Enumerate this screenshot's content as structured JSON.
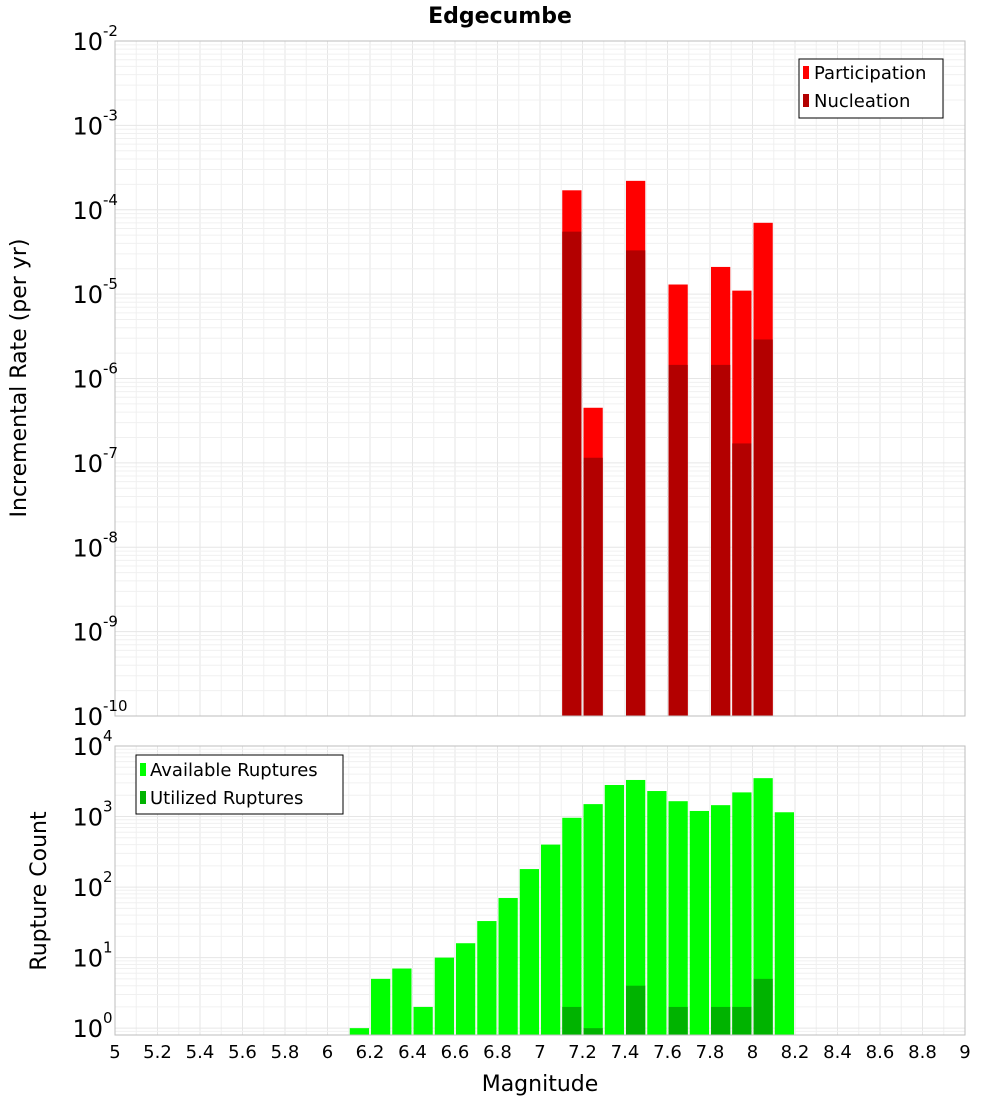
{
  "chart_data": [
    {
      "type": "bar",
      "title": "Edgecumbe",
      "ylabel": "Incremental Rate (per yr)",
      "xlabel": "",
      "xlim": [
        5,
        9
      ],
      "ylim": [
        1e-10,
        0.01
      ],
      "y_scale": "log",
      "bar_width": 0.1,
      "grid": true,
      "legend_position": "top-right",
      "series": [
        {
          "name": "Participation",
          "color": "#ff0000",
          "points": [
            {
              "x": 7.15,
              "y": 0.00017
            },
            {
              "x": 7.25,
              "y": 4.5e-07
            },
            {
              "x": 7.45,
              "y": 0.00022
            },
            {
              "x": 7.65,
              "y": 1.3e-05
            },
            {
              "x": 7.85,
              "y": 2.1e-05
            },
            {
              "x": 7.95,
              "y": 1.1e-05
            },
            {
              "x": 8.05,
              "y": 7e-05
            }
          ]
        },
        {
          "name": "Nucleation",
          "color": "#b30000",
          "points": [
            {
              "x": 7.15,
              "y": 5.5e-05
            },
            {
              "x": 7.25,
              "y": 1.15e-07
            },
            {
              "x": 7.45,
              "y": 3.3e-05
            },
            {
              "x": 7.65,
              "y": 1.45e-06
            },
            {
              "x": 7.85,
              "y": 1.45e-06
            },
            {
              "x": 7.95,
              "y": 1.7e-07
            },
            {
              "x": 8.05,
              "y": 2.9e-06
            }
          ]
        }
      ]
    },
    {
      "type": "bar",
      "title": "",
      "ylabel": "Rupture Count",
      "xlabel": "Magnitude",
      "xlim": [
        5,
        9
      ],
      "ylim": [
        0.8,
        10000.0
      ],
      "y_scale": "log",
      "bar_width": 0.1,
      "grid": true,
      "legend_position": "top-left",
      "x_ticks": [
        "5",
        "5.2",
        "5.4",
        "5.6",
        "5.8",
        "6",
        "6.2",
        "6.4",
        "6.6",
        "6.8",
        "7",
        "7.2",
        "7.4",
        "7.6",
        "7.8",
        "8",
        "8.2",
        "8.4",
        "8.6",
        "8.8",
        "9"
      ],
      "series": [
        {
          "name": "Available Ruptures",
          "color": "#00ff00",
          "points": [
            {
              "x": 6.15,
              "y": 1
            },
            {
              "x": 6.25,
              "y": 5
            },
            {
              "x": 6.35,
              "y": 7
            },
            {
              "x": 6.45,
              "y": 2
            },
            {
              "x": 6.55,
              "y": 10
            },
            {
              "x": 6.65,
              "y": 16
            },
            {
              "x": 6.75,
              "y": 33
            },
            {
              "x": 6.85,
              "y": 70
            },
            {
              "x": 6.95,
              "y": 180
            },
            {
              "x": 7.05,
              "y": 400
            },
            {
              "x": 7.15,
              "y": 960
            },
            {
              "x": 7.25,
              "y": 1500
            },
            {
              "x": 7.35,
              "y": 2800
            },
            {
              "x": 7.45,
              "y": 3300
            },
            {
              "x": 7.55,
              "y": 2300
            },
            {
              "x": 7.65,
              "y": 1650
            },
            {
              "x": 7.75,
              "y": 1200
            },
            {
              "x": 7.85,
              "y": 1450
            },
            {
              "x": 7.95,
              "y": 2200
            },
            {
              "x": 8.05,
              "y": 3500
            },
            {
              "x": 8.15,
              "y": 1150
            }
          ]
        },
        {
          "name": "Utilized Ruptures",
          "color": "#00b300",
          "points": [
            {
              "x": 7.15,
              "y": 2
            },
            {
              "x": 7.25,
              "y": 1
            },
            {
              "x": 7.45,
              "y": 4
            },
            {
              "x": 7.65,
              "y": 2
            },
            {
              "x": 7.85,
              "y": 2
            },
            {
              "x": 7.95,
              "y": 2
            },
            {
              "x": 8.05,
              "y": 5
            }
          ]
        }
      ]
    }
  ],
  "top_y_ticks": [
    {
      "base": "10",
      "exp": "-2"
    },
    {
      "base": "10",
      "exp": "-3"
    },
    {
      "base": "10",
      "exp": "-4"
    },
    {
      "base": "10",
      "exp": "-5"
    },
    {
      "base": "10",
      "exp": "-6"
    },
    {
      "base": "10",
      "exp": "-7"
    },
    {
      "base": "10",
      "exp": "-8"
    },
    {
      "base": "10",
      "exp": "-9"
    },
    {
      "base": "10",
      "exp": "-10"
    }
  ],
  "bottom_y_ticks": [
    {
      "base": "10",
      "exp": "4"
    },
    {
      "base": "10",
      "exp": "3"
    },
    {
      "base": "10",
      "exp": "2"
    },
    {
      "base": "10",
      "exp": "1"
    },
    {
      "base": "10",
      "exp": "0"
    }
  ]
}
